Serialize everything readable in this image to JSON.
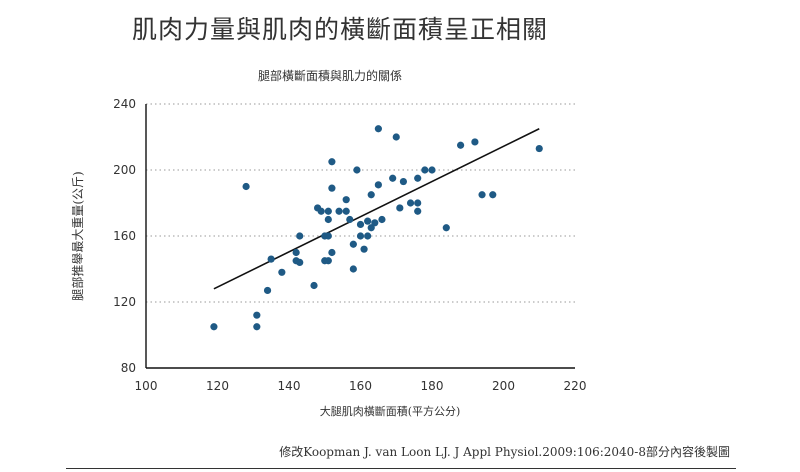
{
  "headline": "肌肉力量與肌肉的橫斷面積呈正相關",
  "caption": "修改Koopman J. van Loon LJ. J Appl Physiol.2009:106:2040-8部分內容後製圖",
  "chart_data": {
    "type": "scatter",
    "title": "腿部橫斷面積與肌力的關係",
    "xlabel": "大腿肌肉橫斷面積(平方公分)",
    "ylabel": "腿部推舉最大重量(公斤)",
    "xlim": [
      100,
      220
    ],
    "ylim": [
      80,
      240
    ],
    "xticks": [
      100,
      120,
      140,
      160,
      180,
      200,
      220
    ],
    "yticks": [
      80,
      120,
      160,
      200,
      240
    ],
    "grid": "horizontal dotted",
    "point_color": "#1f5a85",
    "trendline": {
      "x": [
        119,
        210
      ],
      "y": [
        128,
        225
      ]
    },
    "points": [
      [
        119,
        105
      ],
      [
        128,
        190
      ],
      [
        131,
        112
      ],
      [
        131,
        105
      ],
      [
        134,
        127
      ],
      [
        135,
        146
      ],
      [
        138,
        138
      ],
      [
        142,
        150
      ],
      [
        142,
        145
      ],
      [
        143,
        144
      ],
      [
        143,
        160
      ],
      [
        147,
        130
      ],
      [
        148,
        177
      ],
      [
        149,
        175
      ],
      [
        150,
        160
      ],
      [
        150,
        145
      ],
      [
        151,
        175
      ],
      [
        151,
        170
      ],
      [
        151,
        160
      ],
      [
        152,
        189
      ],
      [
        152,
        205
      ],
      [
        152,
        150
      ],
      [
        151,
        145
      ],
      [
        154,
        175
      ],
      [
        156,
        175
      ],
      [
        156,
        182
      ],
      [
        157,
        170
      ],
      [
        158,
        155
      ],
      [
        158,
        140
      ],
      [
        159,
        200
      ],
      [
        160,
        167
      ],
      [
        160,
        160
      ],
      [
        161,
        152
      ],
      [
        162,
        160
      ],
      [
        162,
        169
      ],
      [
        163,
        165
      ],
      [
        163,
        185
      ],
      [
        164,
        168
      ],
      [
        165,
        191
      ],
      [
        165,
        225
      ],
      [
        166,
        170
      ],
      [
        169,
        195
      ],
      [
        170,
        220
      ],
      [
        171,
        177
      ],
      [
        172,
        193
      ],
      [
        174,
        180
      ],
      [
        176,
        180
      ],
      [
        176,
        175
      ],
      [
        176,
        195
      ],
      [
        178,
        200
      ],
      [
        180,
        200
      ],
      [
        184,
        165
      ],
      [
        188,
        215
      ],
      [
        192,
        217
      ],
      [
        194,
        185
      ],
      [
        197,
        185
      ],
      [
        210,
        213
      ]
    ]
  }
}
